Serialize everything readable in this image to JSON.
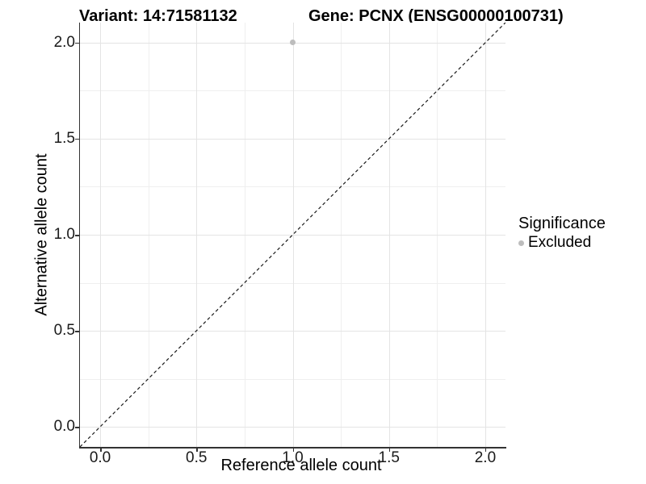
{
  "chart_data": {
    "type": "scatter",
    "title_left": "Variant: 14:71581132",
    "title_right": "Gene: PCNX (ENSG00000100731)",
    "xlabel": "Reference allele count",
    "ylabel": "Alternative allele count",
    "xlim": [
      -0.105,
      2.105
    ],
    "ylim": [
      -0.105,
      2.105
    ],
    "x_ticks": {
      "values": [
        0.0,
        0.5,
        1.0,
        1.5,
        2.0
      ],
      "labels": [
        "0.0",
        "0.5",
        "1.0",
        "1.5",
        "2.0"
      ]
    },
    "y_ticks": {
      "values": [
        0.0,
        0.5,
        1.0,
        1.5,
        2.0
      ],
      "labels": [
        "0.0",
        "0.5",
        "1.0",
        "1.5",
        "2.0"
      ]
    },
    "x_minor": [
      0.25,
      0.75,
      1.25,
      1.75
    ],
    "y_minor": [
      0.25,
      0.75,
      1.25,
      1.75
    ],
    "grid": true,
    "legend_position": "right",
    "points": [
      {
        "x": 1.0,
        "y": 2.0,
        "series": "Excluded"
      }
    ],
    "reference_line": {
      "slope": 1,
      "intercept": 0,
      "style": "dashed",
      "color": "#1a1a1a"
    },
    "legend": {
      "title": "Significance",
      "entries": [
        {
          "label": "Excluded",
          "color": "#bdbdbd"
        }
      ]
    },
    "colors": {
      "background": "#ffffff",
      "grid_major": "#e4e4e4",
      "grid_minor": "#efefef",
      "axis": "#333333",
      "text": "#000000",
      "point_excluded": "#bdbdbd"
    }
  }
}
